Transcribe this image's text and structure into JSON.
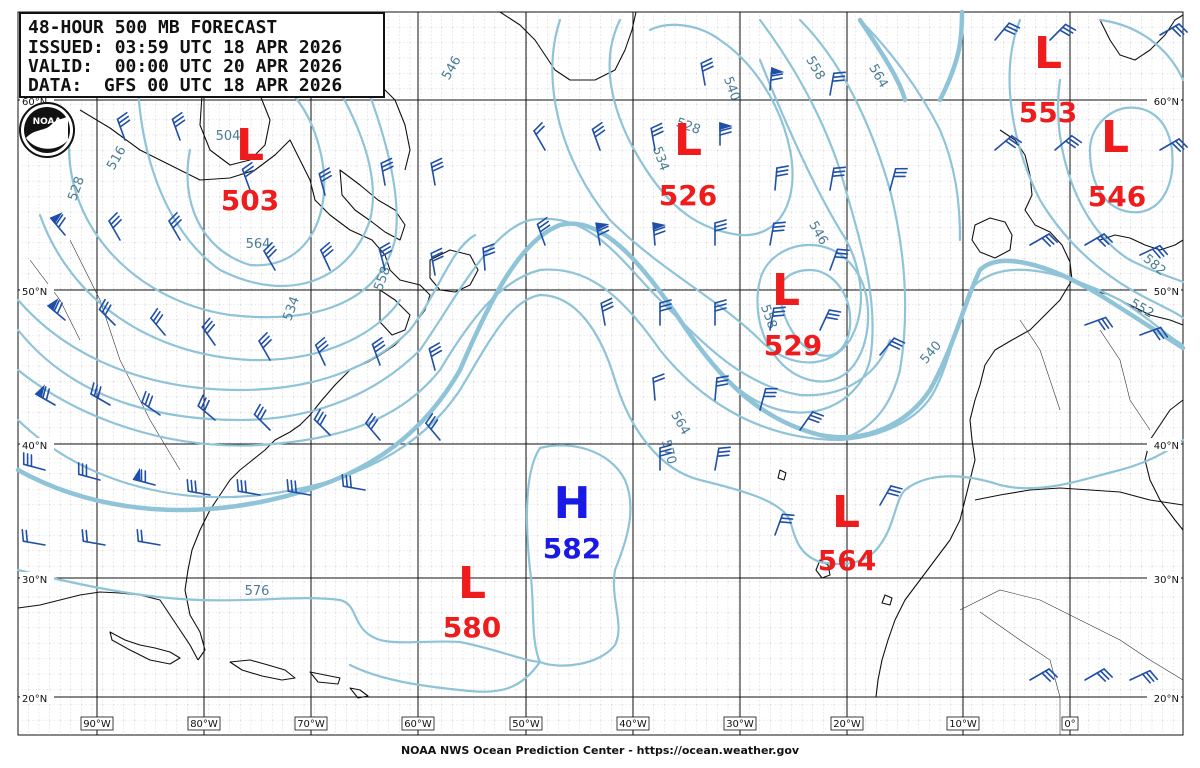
{
  "header": {
    "line1": "48-HOUR 500 MB FORECAST",
    "line2": "ISSUED: 03:59 UTC 18 APR 2026",
    "line3": "VALID:  00:00 UTC 20 APR 2026",
    "line4": "DATA:  GFS 00 UTC 18 APR 2026"
  },
  "logo_text": "NOAA",
  "footer": "NOAA NWS Ocean Prediction Center - https://ocean.weather.gov",
  "lat_labels": [
    "60°N",
    "50°N",
    "40°N",
    "30°N",
    "20°N"
  ],
  "lon_labels": [
    "90°W",
    "80°W",
    "70°W",
    "60°W",
    "50°W",
    "40°W",
    "30°W",
    "20°W",
    "10°W",
    "0°"
  ],
  "centers": [
    {
      "type": "L",
      "value": "503"
    },
    {
      "type": "L",
      "value": "526"
    },
    {
      "type": "L",
      "value": "529"
    },
    {
      "type": "L",
      "value": "553"
    },
    {
      "type": "L",
      "value": "546"
    },
    {
      "type": "H",
      "value": "582"
    },
    {
      "type": "L",
      "value": "580"
    },
    {
      "type": "L",
      "value": "564"
    }
  ],
  "contour_labels": [
    "516",
    "528",
    "504",
    "546",
    "534",
    "558",
    "564",
    "528",
    "534",
    "540",
    "546",
    "558",
    "540",
    "564",
    "570",
    "576",
    "582",
    "552",
    "558",
    "564"
  ],
  "colors": {
    "contour": "#8fc3d8",
    "contour_label": "#4a7c94",
    "low": "#ee1c1c",
    "high": "#1a1ae6",
    "barb": "#1f4fa8",
    "coast": "#111111",
    "grid_major": "#111111",
    "grid_minor": "#b0b0b0"
  }
}
